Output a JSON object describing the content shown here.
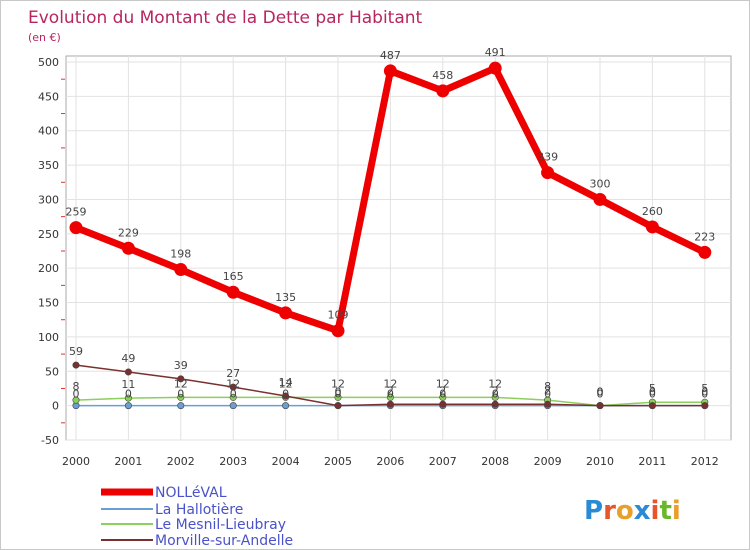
{
  "chart_data": {
    "type": "line",
    "title": "Evolution du Montant de la Dette par Habitant",
    "subtitle": "(en €)",
    "xlabel": "",
    "ylabel": "",
    "x": [
      "2000",
      "2001",
      "2002",
      "2003",
      "2004",
      "2005",
      "2006",
      "2007",
      "2008",
      "2009",
      "2010",
      "2011",
      "2012"
    ],
    "ylim": [
      -50,
      500
    ],
    "yticks": [
      "-50",
      "0",
      "50",
      "100",
      "150",
      "200",
      "250",
      "300",
      "350",
      "400",
      "450",
      "500"
    ],
    "series": [
      {
        "name": "La Hallotière",
        "color": "#6a9fd4",
        "values": [
          0,
          0,
          0,
          0,
          0,
          0,
          0,
          0,
          0,
          0,
          0,
          0,
          0
        ],
        "labels": [
          "0",
          "0",
          "0",
          "0",
          "0",
          "0",
          "0",
          "0",
          "0",
          "0",
          "0",
          "0",
          "0"
        ]
      },
      {
        "name": "Le Mesnil-Lieubray",
        "color": "#8ccf5a",
        "values": [
          8,
          11,
          12,
          12,
          12,
          12,
          12,
          12,
          12,
          8,
          0,
          5,
          5
        ],
        "labels": [
          "8",
          "11",
          "12",
          "12",
          "12",
          "12",
          "12",
          "12",
          "12",
          "8",
          "0",
          "5",
          "5"
        ]
      },
      {
        "name": "Morville-sur-Andelle",
        "color": "#7b3030",
        "values": [
          59,
          49,
          39,
          27,
          14,
          0,
          2,
          2,
          2,
          2,
          0,
          0,
          0
        ],
        "labels": [
          "59",
          "49",
          "39",
          "27",
          "14",
          "0",
          "2",
          "2",
          "2",
          "2",
          "0",
          "0",
          "0"
        ]
      },
      {
        "name": "NOLLéVAL",
        "color": "#ee0000",
        "values": [
          259,
          229,
          198,
          165,
          135,
          109,
          487,
          458,
          491,
          339,
          300,
          260,
          223
        ],
        "labels": [
          "259",
          "229",
          "198",
          "165",
          "135",
          "109",
          "487",
          "458",
          "491",
          "339",
          "300",
          "260",
          "223"
        ]
      }
    ],
    "legend": [
      "NOLLéVAL",
      "La Hallotière",
      "Le Mesnil-Lieubray",
      "Morville-sur-Andelle"
    ],
    "legend_position": "bottom-left"
  },
  "logo": {
    "text": "Proxiti"
  }
}
